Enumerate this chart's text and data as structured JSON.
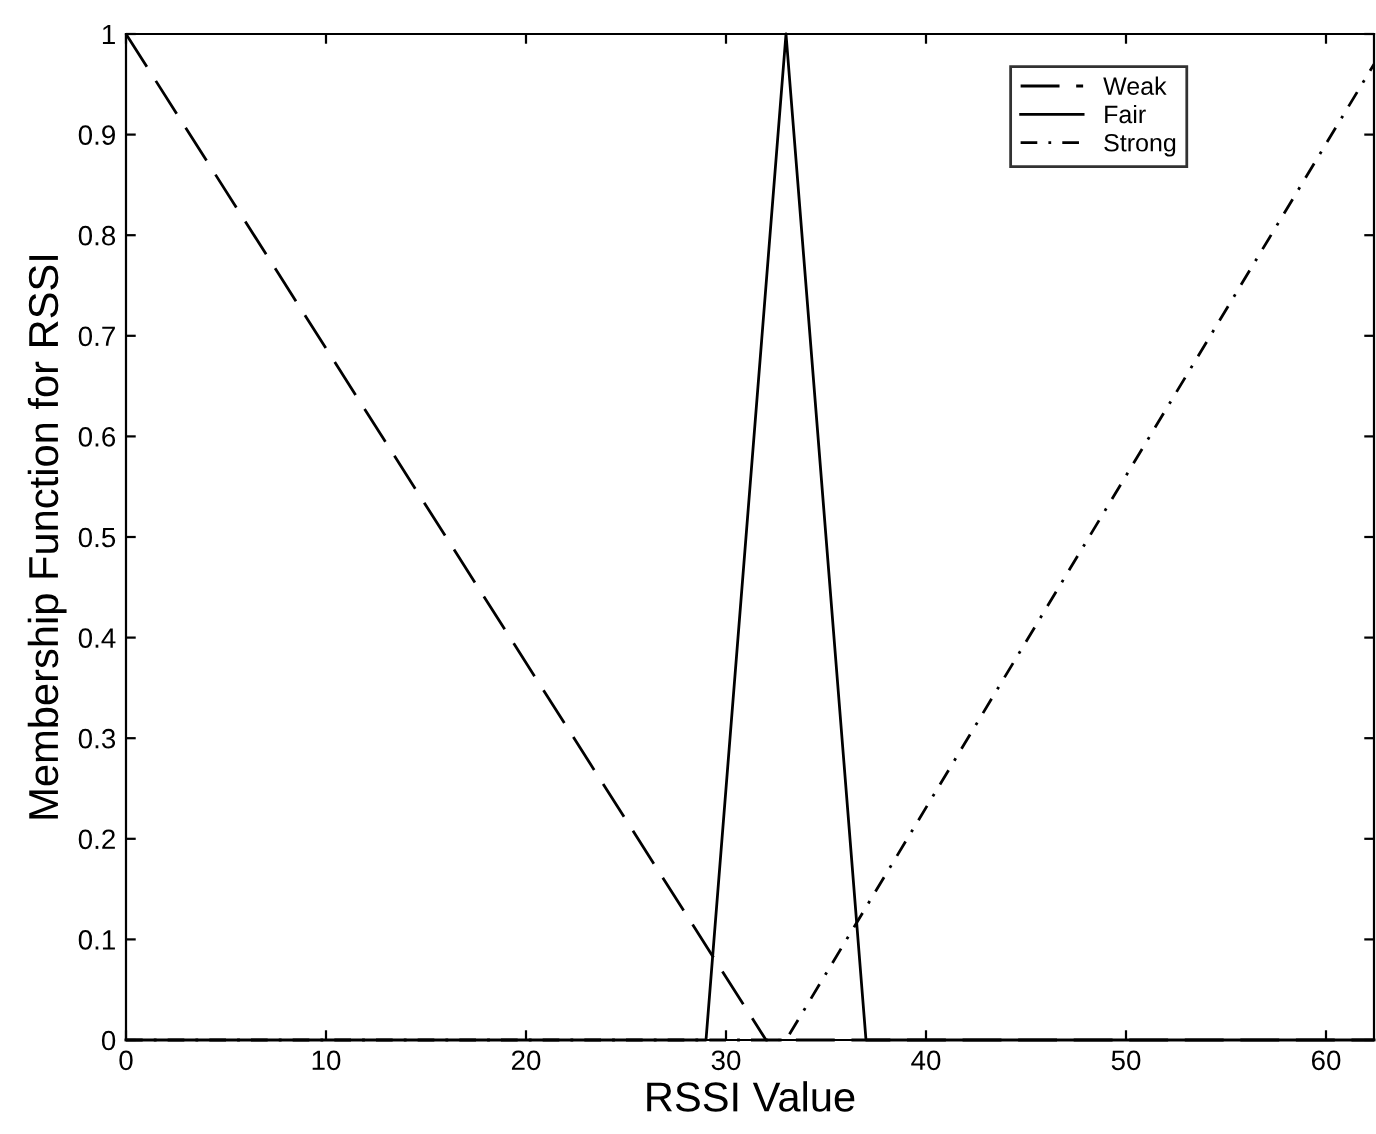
{
  "chart_data": {
    "type": "line",
    "xlabel": "RSSI Value",
    "ylabel": "Membership Function for RSSI",
    "series": [
      {
        "name": "Weak",
        "color": "#000000",
        "line_style": "dashed",
        "x": [
          0,
          32,
          62.4
        ],
        "values": [
          1,
          0,
          0
        ]
      },
      {
        "name": "Fair",
        "color": "#000000",
        "line_style": "solid",
        "x": [
          0,
          29,
          33,
          37,
          62.4
        ],
        "values": [
          0,
          0,
          1,
          0,
          0
        ]
      },
      {
        "name": "Strong",
        "color": "#000000",
        "line_style": "dotted",
        "x": [
          0,
          33,
          62.4
        ],
        "values": [
          0,
          0,
          0.97
        ]
      }
    ],
    "xlim": [
      0,
      62.4
    ],
    "ylim": [
      0,
      1
    ],
    "xticks": [
      0,
      10,
      20,
      30,
      40,
      50,
      60
    ],
    "yticks": [
      0,
      0.1,
      0.2,
      0.3,
      0.4,
      0.5,
      0.6,
      0.7,
      0.8,
      0.9,
      1
    ],
    "grid": false,
    "legend": "top right",
    "marker": "none"
  }
}
